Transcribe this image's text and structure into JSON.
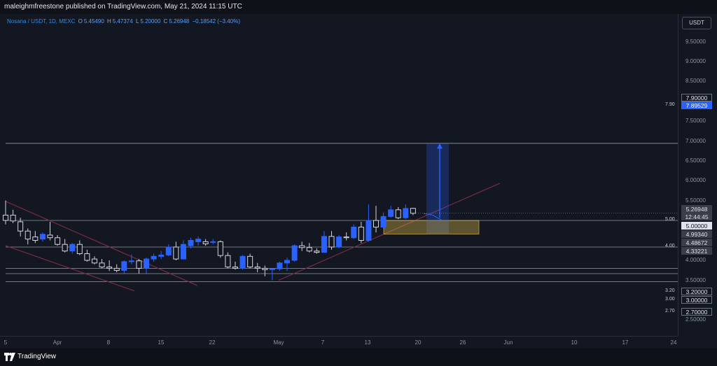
{
  "header": {
    "published_text": "maleighmfreestone published on TradingView.com, May 21, 2024 11:15 UTC"
  },
  "legend": {
    "symbol": "Nosana / USDT, 1D, MEXC",
    "open_label": "O",
    "open": "5.45490",
    "high_label": "H",
    "high": "5.47374",
    "low_label": "L",
    "low": "5.20000",
    "close_label": "C",
    "close": "5.26948",
    "change": "−0.18542 (−3.40%)"
  },
  "price_axis": {
    "currency": "USDT",
    "ticks": [
      "9.50000",
      "9.00000",
      "8.50000",
      "8.00000",
      "7.50000",
      "7.00000",
      "6.50000",
      "6.00000",
      "5.50000",
      "4.00000",
      "3.50000",
      "2.50000"
    ],
    "tags": {
      "t790": "7.90000",
      "target": "7.89529",
      "last_price": "5.26948",
      "countdown": "12:44:45",
      "t500": "5.00000",
      "box_top": "4.99340",
      "box_bottom": "4.48672",
      "t433": "4.33221",
      "t320": "3.20000",
      "t300": "3.00000",
      "t270": "2.70000"
    }
  },
  "line_labels": {
    "l790": "7.90",
    "l500": "5.00",
    "l400": "4.00",
    "l320": "3.20",
    "l300": "3.00",
    "l270": "2.70"
  },
  "time_axis": [
    "5",
    "Apr",
    "8",
    "15",
    "22",
    "May",
    "7",
    "13",
    "20",
    "26",
    "Jun",
    "10",
    "17",
    "24"
  ],
  "footer": {
    "brand": "TradingView"
  },
  "colors": {
    "background": "#131722",
    "up": "#2962ff",
    "down": "#d1d4dc",
    "channel": "#7a2a45",
    "zone": "#e8c547",
    "arrow": "#2962ff"
  },
  "chart_data": {
    "type": "candlestick",
    "title": "Nosana / USDT, 1D, MEXC",
    "ylim": [
      2.2,
      9.9
    ],
    "horizontal_levels": [
      7.9,
      5.0,
      4.0,
      3.2,
      3.0,
      2.7
    ],
    "candles": [
      {
        "o": 5.2,
        "h": 5.75,
        "l": 4.85,
        "c": 5.0
      },
      {
        "o": 5.2,
        "h": 5.4,
        "l": 4.9,
        "c": 4.98
      },
      {
        "o": 4.95,
        "h": 5.1,
        "l": 4.4,
        "c": 4.6
      },
      {
        "o": 4.6,
        "h": 4.7,
        "l": 4.1,
        "c": 4.3
      },
      {
        "o": 4.38,
        "h": 4.6,
        "l": 4.15,
        "c": 4.25
      },
      {
        "o": 4.3,
        "h": 4.55,
        "l": 4.2,
        "c": 4.48
      },
      {
        "o": 4.45,
        "h": 4.95,
        "l": 4.25,
        "c": 4.35
      },
      {
        "o": 4.35,
        "h": 4.45,
        "l": 4.05,
        "c": 4.1
      },
      {
        "o": 4.1,
        "h": 4.3,
        "l": 3.8,
        "c": 3.85
      },
      {
        "o": 3.85,
        "h": 4.15,
        "l": 3.75,
        "c": 4.1
      },
      {
        "o": 4.1,
        "h": 4.25,
        "l": 3.7,
        "c": 3.75
      },
      {
        "o": 3.75,
        "h": 3.9,
        "l": 3.45,
        "c": 3.5
      },
      {
        "o": 3.55,
        "h": 3.65,
        "l": 3.35,
        "c": 3.4
      },
      {
        "o": 3.4,
        "h": 3.55,
        "l": 3.2,
        "c": 3.25
      },
      {
        "o": 3.25,
        "h": 3.5,
        "l": 3.1,
        "c": 3.2
      },
      {
        "o": 3.2,
        "h": 3.35,
        "l": 3.05,
        "c": 3.12
      },
      {
        "o": 3.12,
        "h": 3.5,
        "l": 3.0,
        "c": 3.45
      },
      {
        "o": 3.45,
        "h": 3.72,
        "l": 3.35,
        "c": 3.48
      },
      {
        "o": 3.48,
        "h": 3.55,
        "l": 3.0,
        "c": 3.2
      },
      {
        "o": 3.2,
        "h": 3.6,
        "l": 2.98,
        "c": 3.55
      },
      {
        "o": 3.55,
        "h": 3.75,
        "l": 3.45,
        "c": 3.65
      },
      {
        "o": 3.65,
        "h": 3.85,
        "l": 3.55,
        "c": 3.7
      },
      {
        "o": 3.7,
        "h": 4.1,
        "l": 3.65,
        "c": 4.0
      },
      {
        "o": 4.0,
        "h": 4.2,
        "l": 3.5,
        "c": 3.55
      },
      {
        "o": 3.55,
        "h": 4.25,
        "l": 3.55,
        "c": 4.1
      },
      {
        "o": 4.05,
        "h": 4.35,
        "l": 3.95,
        "c": 4.25
      },
      {
        "o": 4.2,
        "h": 4.4,
        "l": 4.05,
        "c": 4.3
      },
      {
        "o": 4.2,
        "h": 4.3,
        "l": 4.05,
        "c": 4.12
      },
      {
        "o": 4.18,
        "h": 4.3,
        "l": 4.1,
        "c": 4.2
      },
      {
        "o": 4.2,
        "h": 4.25,
        "l": 3.6,
        "c": 3.68
      },
      {
        "o": 3.68,
        "h": 3.8,
        "l": 3.2,
        "c": 3.25
      },
      {
        "o": 3.25,
        "h": 3.45,
        "l": 3.15,
        "c": 3.2
      },
      {
        "o": 3.2,
        "h": 3.7,
        "l": 3.15,
        "c": 3.65
      },
      {
        "o": 3.65,
        "h": 3.75,
        "l": 3.2,
        "c": 3.25
      },
      {
        "o": 3.25,
        "h": 3.4,
        "l": 3.05,
        "c": 3.2
      },
      {
        "o": 3.2,
        "h": 3.3,
        "l": 2.9,
        "c": 3.15
      },
      {
        "o": 3.15,
        "h": 3.2,
        "l": 2.75,
        "c": 3.18
      },
      {
        "o": 3.18,
        "h": 3.45,
        "l": 3.1,
        "c": 3.4
      },
      {
        "o": 3.4,
        "h": 3.6,
        "l": 3.1,
        "c": 3.5
      },
      {
        "o": 3.5,
        "h": 4.1,
        "l": 3.45,
        "c": 4.05
      },
      {
        "o": 4.05,
        "h": 4.2,
        "l": 3.85,
        "c": 3.98
      },
      {
        "o": 3.98,
        "h": 4.15,
        "l": 3.8,
        "c": 3.85
      },
      {
        "o": 3.85,
        "h": 3.95,
        "l": 3.75,
        "c": 3.8
      },
      {
        "o": 3.8,
        "h": 4.6,
        "l": 3.8,
        "c": 4.4
      },
      {
        "o": 4.4,
        "h": 4.6,
        "l": 3.9,
        "c": 4.0
      },
      {
        "o": 4.0,
        "h": 4.45,
        "l": 3.95,
        "c": 4.38
      },
      {
        "o": 4.38,
        "h": 4.55,
        "l": 4.25,
        "c": 4.35
      },
      {
        "o": 4.35,
        "h": 4.85,
        "l": 4.3,
        "c": 4.75
      },
      {
        "o": 4.75,
        "h": 4.95,
        "l": 4.15,
        "c": 4.25
      },
      {
        "o": 4.25,
        "h": 5.6,
        "l": 4.2,
        "c": 5.0
      },
      {
        "o": 5.0,
        "h": 5.55,
        "l": 4.55,
        "c": 4.75
      },
      {
        "o": 4.75,
        "h": 5.3,
        "l": 4.7,
        "c": 5.15
      },
      {
        "o": 5.15,
        "h": 5.55,
        "l": 5.1,
        "c": 5.4
      },
      {
        "o": 5.4,
        "h": 5.5,
        "l": 5.05,
        "c": 5.1
      },
      {
        "o": 5.1,
        "h": 5.6,
        "l": 5.05,
        "c": 5.45
      },
      {
        "o": 5.4549,
        "h": 5.47374,
        "l": 5.2,
        "c": 5.26948
      }
    ]
  }
}
